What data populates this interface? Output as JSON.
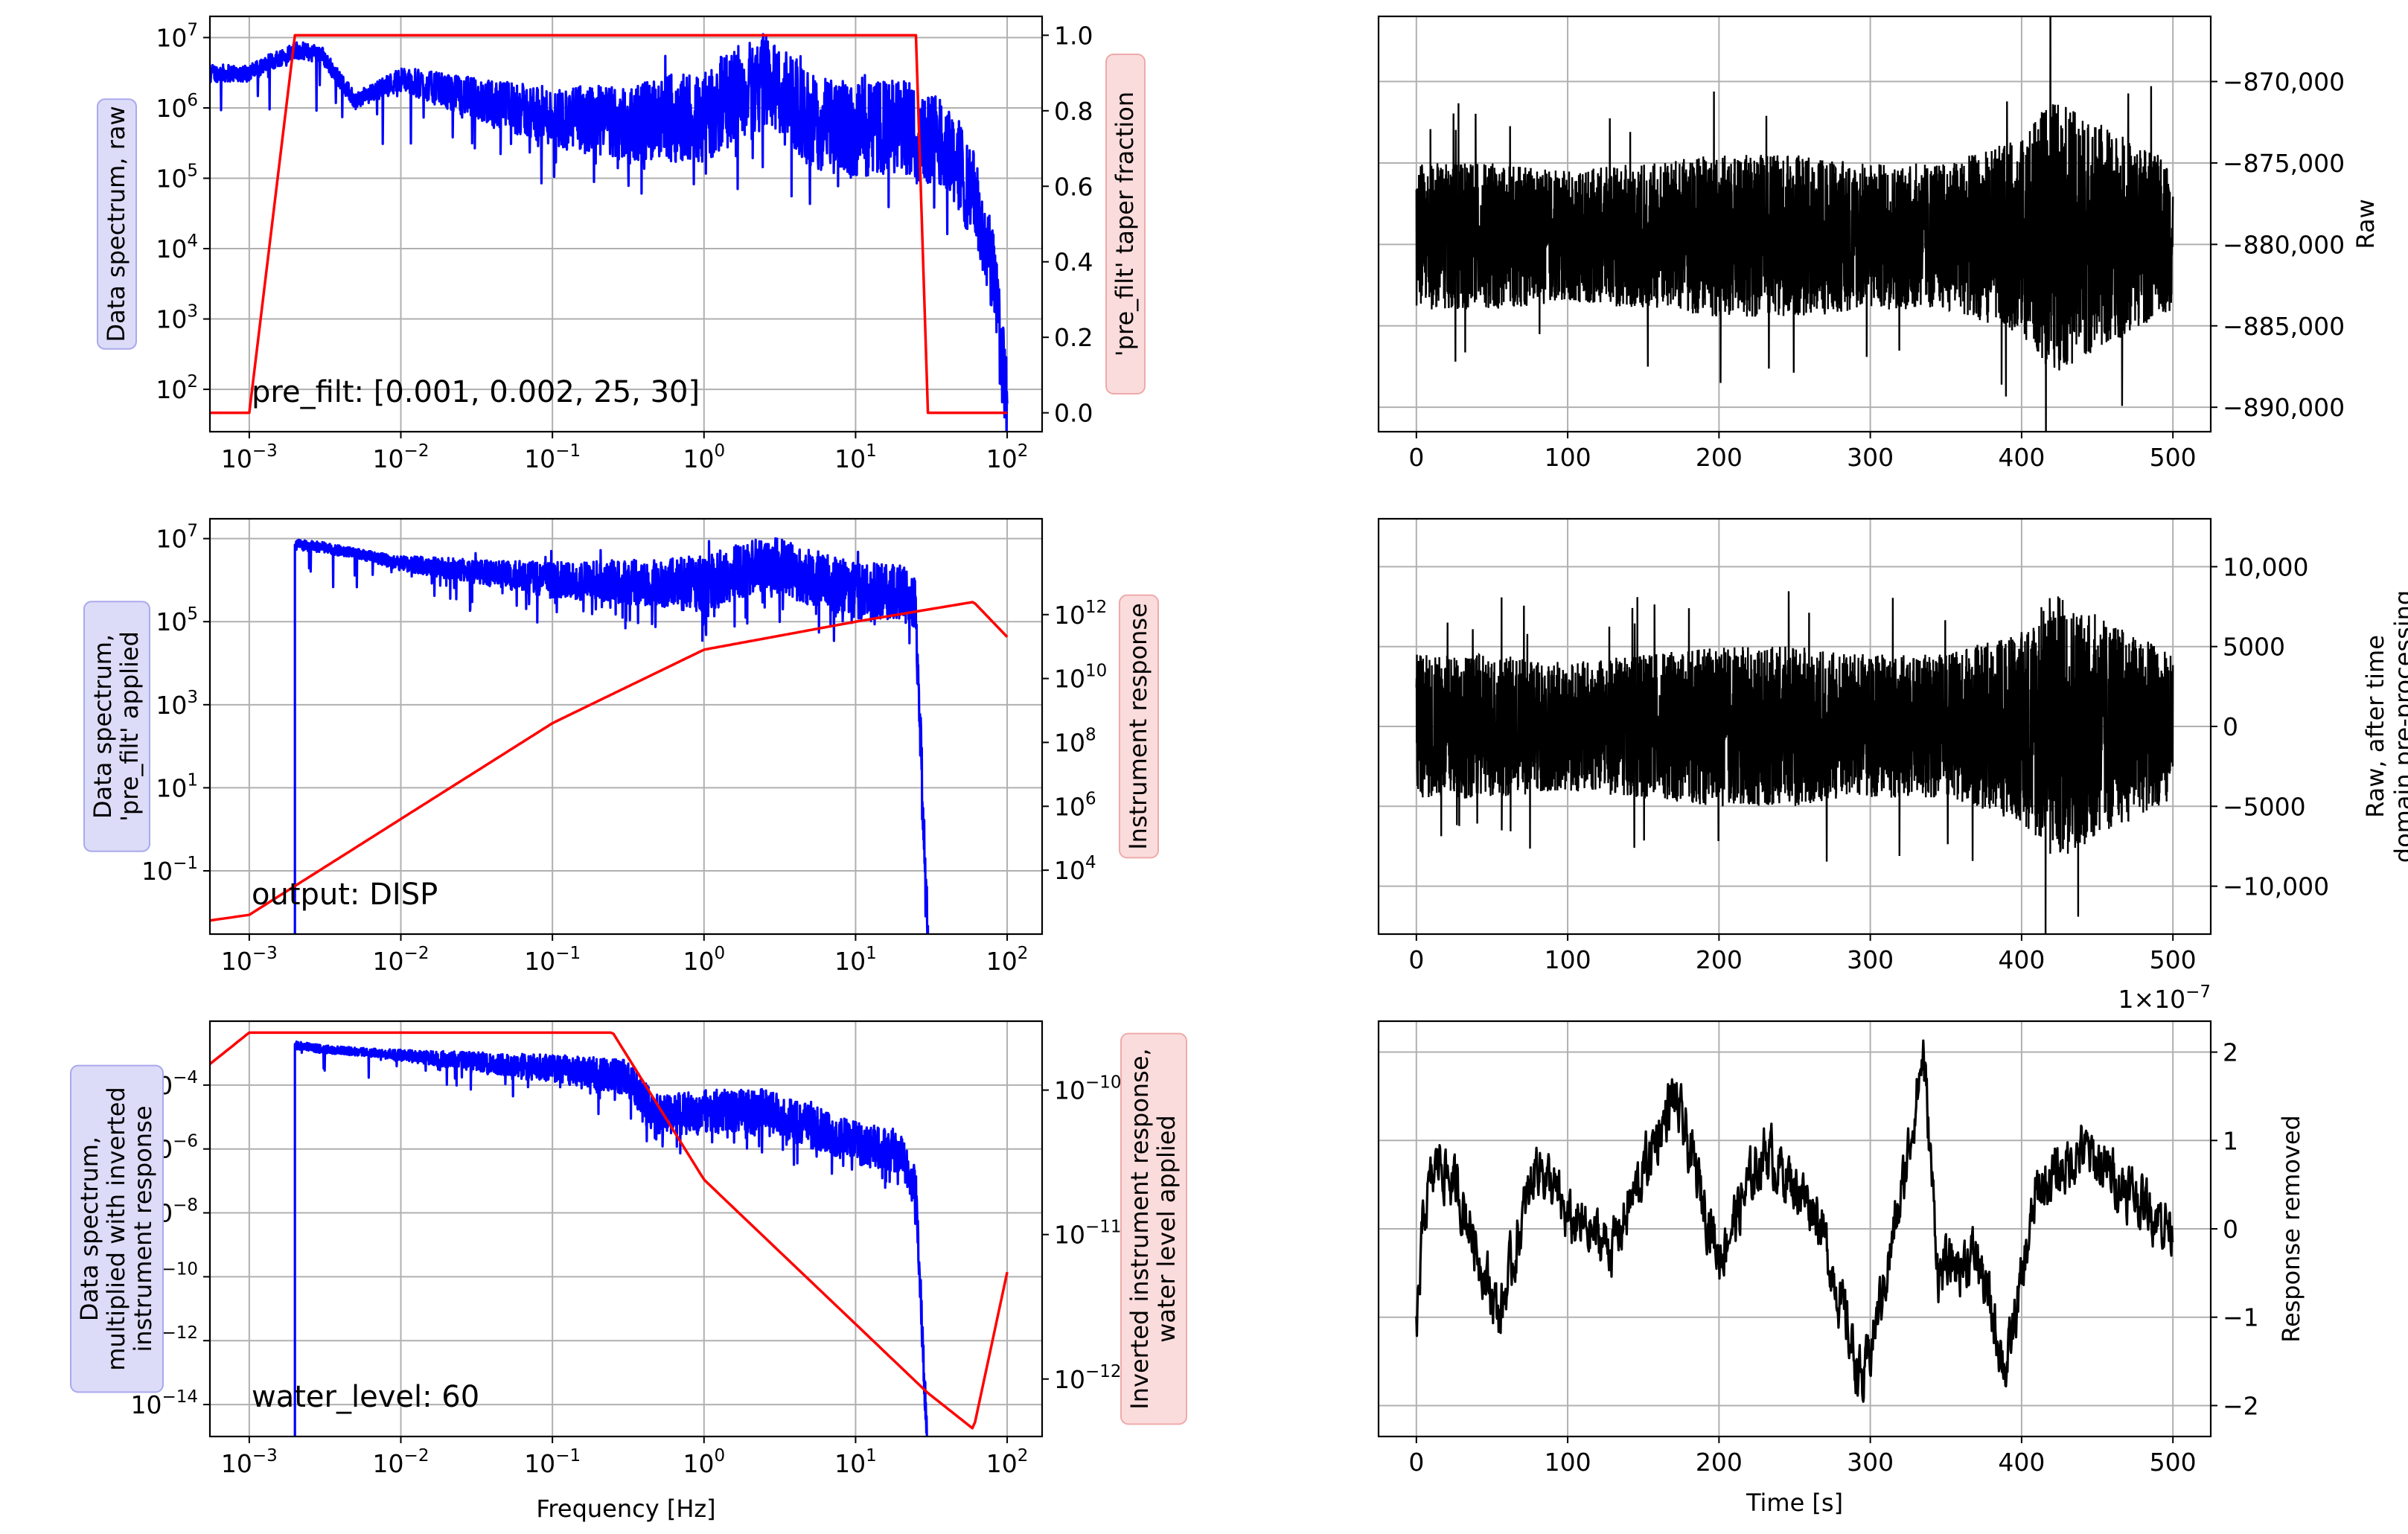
{
  "chart_data": [
    {
      "type": "line",
      "panel": "spectrum-raw",
      "xlabel": "",
      "xscale": "log",
      "xlim": [
        0.00055,
        170
      ],
      "x_ticks": [
        0.001,
        0.01,
        0.1,
        1,
        10,
        100
      ],
      "ylabel": "Data spectrum, raw",
      "yscale": "log",
      "ylim": [
        25,
        20000000
      ],
      "y_ticks": [
        100,
        1000,
        10000,
        100000,
        1000000,
        10000000
      ],
      "y_tick_labels": [
        [
          "10",
          "2"
        ],
        [
          "10",
          "3"
        ],
        [
          "10",
          "4"
        ],
        [
          "10",
          "5"
        ],
        [
          "10",
          "6"
        ],
        [
          "10",
          "7"
        ]
      ],
      "y2label": "'pre_filt' taper fraction",
      "y2lim": [
        -0.05,
        1.05
      ],
      "y2_ticks": [
        0.0,
        0.2,
        0.4,
        0.6,
        0.8,
        1.0
      ],
      "y2_tick_labels": [
        "0.0",
        "0.2",
        "0.4",
        "0.6",
        "0.8",
        "1.0"
      ],
      "annotation": "pre_filt: [0.001, 0.002, 25, 30]",
      "series": [
        {
          "name": "Data spectrum, raw",
          "axis": "left",
          "color": "#0000ff",
          "x": [
            0.0005,
            0.001,
            0.002,
            0.003,
            0.005,
            0.01,
            0.03,
            0.1,
            0.3,
            1,
            2.5,
            5,
            10,
            20,
            40,
            60,
            80,
            100
          ],
          "y": [
            3500000,
            3500000,
            7500000,
            6500000,
            1400000,
            3000000,
            1800000,
            1100000,
            1000000,
            1500000,
            5000000,
            1200000,
            900000,
            1000000,
            600000,
            100000,
            10000,
            100
          ]
        },
        {
          "name": "'pre_filt' taper fraction",
          "axis": "right",
          "color": "#ff0000",
          "x": [
            0.0005,
            0.001,
            0.002,
            25,
            30,
            100
          ],
          "y": [
            0,
            0,
            1,
            1,
            0,
            0
          ]
        }
      ]
    },
    {
      "type": "line",
      "panel": "spectrum-prefilt",
      "xlabel": "",
      "xscale": "log",
      "xlim": [
        0.00055,
        170
      ],
      "x_ticks": [
        0.001,
        0.01,
        0.1,
        1,
        10,
        100
      ],
      "ylabel": [
        "Data spectrum,",
        "'pre_filt' applied"
      ],
      "yscale": "log",
      "ylim": [
        0.003,
        30000000
      ],
      "y_ticks": [
        0.1,
        10,
        1000,
        100000,
        10000000
      ],
      "y_tick_labels": [
        [
          "10",
          "−1"
        ],
        [
          "10",
          "1"
        ],
        [
          "10",
          "3"
        ],
        [
          "10",
          "5"
        ],
        [
          "10",
          "7"
        ]
      ],
      "y2label": "Instrument response",
      "y2scale": "log",
      "y2lim": [
        100,
        1000000000000000
      ],
      "y2_ticks": [
        10000,
        1000000,
        100000000,
        10000000000,
        1000000000000
      ],
      "y2_tick_labels": [
        [
          "10",
          "4"
        ],
        [
          "10",
          "6"
        ],
        [
          "10",
          "8"
        ],
        [
          "10",
          "10"
        ],
        [
          "10",
          "12"
        ]
      ],
      "annotation": "output: DISP",
      "series": [
        {
          "name": "Data spectrum, 'pre_filt' applied",
          "axis": "left",
          "color": "#0000ff",
          "x": [
            0.002,
            0.003,
            0.01,
            0.1,
            1,
            2.5,
            10,
            20,
            25,
            30
          ],
          "y": [
            8000000,
            7000000,
            3000000,
            1500000,
            1500000,
            5000000,
            1000000,
            1000000,
            400000,
            0.004
          ]
        },
        {
          "name": "Instrument response",
          "axis": "right",
          "color": "#ff0000",
          "x": [
            0.0005,
            0.001,
            0.01,
            0.1,
            1,
            10,
            60,
            100
          ],
          "y": [
            250,
            400,
            400000,
            400000000,
            80000000000,
            600000000000,
            2500000000000,
            200000000000
          ]
        }
      ]
    },
    {
      "type": "line",
      "panel": "spectrum-inverted",
      "xlabel": "Frequency [Hz]",
      "xscale": "log",
      "xlim": [
        0.00055,
        170
      ],
      "x_ticks": [
        0.001,
        0.01,
        0.1,
        1,
        10,
        100
      ],
      "x_tick_labels": [
        [
          "10",
          "−3"
        ],
        [
          "10",
          "−2"
        ],
        [
          "10",
          "−1"
        ],
        [
          "10",
          "0"
        ],
        [
          "10",
          "1"
        ],
        [
          "10",
          "2"
        ]
      ],
      "ylabel": [
        "Data spectrum,",
        "multiplied with inverted",
        "instrument response"
      ],
      "yscale": "log",
      "ylim": [
        1e-15,
        0.01
      ],
      "y_ticks": [
        1e-14,
        1e-12,
        1e-10,
        1e-08,
        1e-06,
        0.0001
      ],
      "y_tick_labels": [
        [
          "10",
          "−14"
        ],
        [
          "10",
          "−12"
        ],
        [
          "10",
          "−10"
        ],
        [
          "10",
          "−8"
        ],
        [
          "10",
          "−6"
        ],
        [
          "10",
          "−4"
        ]
      ],
      "y2label": [
        "Inverted instrument response,",
        "water level applied"
      ],
      "y2scale": "log",
      "y2lim": [
        4e-13,
        3e-10
      ],
      "y2_ticks": [
        1e-12,
        1e-11,
        1e-10
      ],
      "y2_tick_labels": [
        [
          "10",
          "−12"
        ],
        [
          "10",
          "−11"
        ],
        [
          "10",
          "−10"
        ]
      ],
      "annotation": "water_level: 60",
      "series": [
        {
          "name": "Data spectrum, multiplied with inverted instrument response",
          "axis": "left",
          "color": "#0000ff",
          "x": [
            0.002,
            0.003,
            0.01,
            0.1,
            0.3,
            0.5,
            1,
            2.5,
            10,
            20,
            25,
            30
          ],
          "y": [
            0.002,
            0.0015,
            0.001,
            0.0005,
            0.0003,
            2e-05,
            3e-05,
            3e-05,
            3e-06,
            1.5e-06,
            1e-07,
            5e-16
          ]
        },
        {
          "name": "Inverted instrument response, water level applied",
          "axis": "right",
          "color": "#ff0000",
          "x": [
            0.0005,
            0.001,
            0.25,
            1,
            10,
            30,
            60,
            100
          ],
          "y": [
            1.4e-10,
            2.5e-10,
            2.5e-10,
            2.4e-11,
            2.4e-12,
            8e-13,
            4.5e-13,
            5.5e-12
          ]
        }
      ]
    },
    {
      "type": "line",
      "panel": "trace-raw",
      "xlabel": "",
      "xlim": [
        -25,
        525
      ],
      "x_ticks": [
        0,
        100,
        200,
        300,
        400,
        500
      ],
      "x_tick_labels": [
        "0",
        "100",
        "200",
        "300",
        "400",
        "500"
      ],
      "ylabel": "Raw",
      "ylim": [
        -891500,
        -866000
      ],
      "y_ticks": [
        -890000,
        -885000,
        -880000,
        -875000,
        -870000
      ],
      "y_tick_labels": [
        "−890,000",
        "−885,000",
        "−880,000",
        "−875,000",
        "−870,000"
      ],
      "series": [
        {
          "name": "Raw",
          "color": "#000000",
          "center": -879500,
          "envelope": {
            "t": [
              0,
              50,
              100,
              150,
              200,
              250,
              300,
              350,
              400,
              420,
              450,
              500
            ],
            "amplitude": [
              4500,
              4500,
              4000,
              4500,
              5000,
              5000,
              4500,
              4500,
              6000,
              8500,
              7000,
              4500
            ]
          }
        }
      ]
    },
    {
      "type": "line",
      "panel": "trace-preprocessed",
      "xlabel": "",
      "xlim": [
        -25,
        525
      ],
      "x_ticks": [
        0,
        100,
        200,
        300,
        400,
        500
      ],
      "x_tick_labels": [
        "0",
        "100",
        "200",
        "300",
        "400",
        "500"
      ],
      "ylabel": [
        "Raw, after time",
        "domain pre-processing"
      ],
      "ylim": [
        -13000,
        13000
      ],
      "y_ticks": [
        -10000,
        -5000,
        0,
        5000,
        10000
      ],
      "y_tick_labels": [
        "−10,000",
        "−5000",
        "0",
        "5000",
        "10,000"
      ],
      "series": [
        {
          "name": "Raw, after time domain pre-processing",
          "color": "#000000",
          "center": 0,
          "envelope": {
            "t": [
              0,
              50,
              100,
              150,
              200,
              250,
              300,
              350,
              400,
              420,
              450,
              500
            ],
            "amplitude": [
              4500,
              4500,
              4000,
              4500,
              5000,
              5000,
              4500,
              4500,
              6000,
              8500,
              7000,
              4500
            ]
          }
        }
      ]
    },
    {
      "type": "line",
      "panel": "trace-response-removed",
      "xlabel": "Time [s]",
      "xlim": [
        -25,
        525
      ],
      "x_ticks": [
        0,
        100,
        200,
        300,
        400,
        500
      ],
      "x_tick_labels": [
        "0",
        "100",
        "200",
        "300",
        "400",
        "500"
      ],
      "ylabel": "Response removed",
      "ylim": [
        -2.35,
        2.35
      ],
      "y_ticks": [
        -2,
        -1,
        0,
        1,
        2
      ],
      "y_tick_labels": [
        "−2",
        "−1",
        "0",
        "1",
        "2"
      ],
      "offset_label": "1×10",
      "offset_exponent": "−7",
      "series": [
        {
          "name": "Response removed",
          "color": "#000000",
          "x": [
            0,
            5,
            15,
            30,
            55,
            80,
            100,
            130,
            170,
            200,
            230,
            265,
            295,
            320,
            335,
            345,
            370,
            390,
            410,
            440,
            480,
            500
          ],
          "y": [
            -1.2,
            0.2,
            0.8,
            0.3,
            -1.0,
            0.8,
            0.1,
            -0.2,
            1.5,
            -0.3,
            0.9,
            0.2,
            -1.8,
            0.3,
            2.0,
            -0.5,
            -0.3,
            -1.6,
            0.4,
            0.9,
            0.3,
            0.0
          ]
        }
      ]
    }
  ]
}
